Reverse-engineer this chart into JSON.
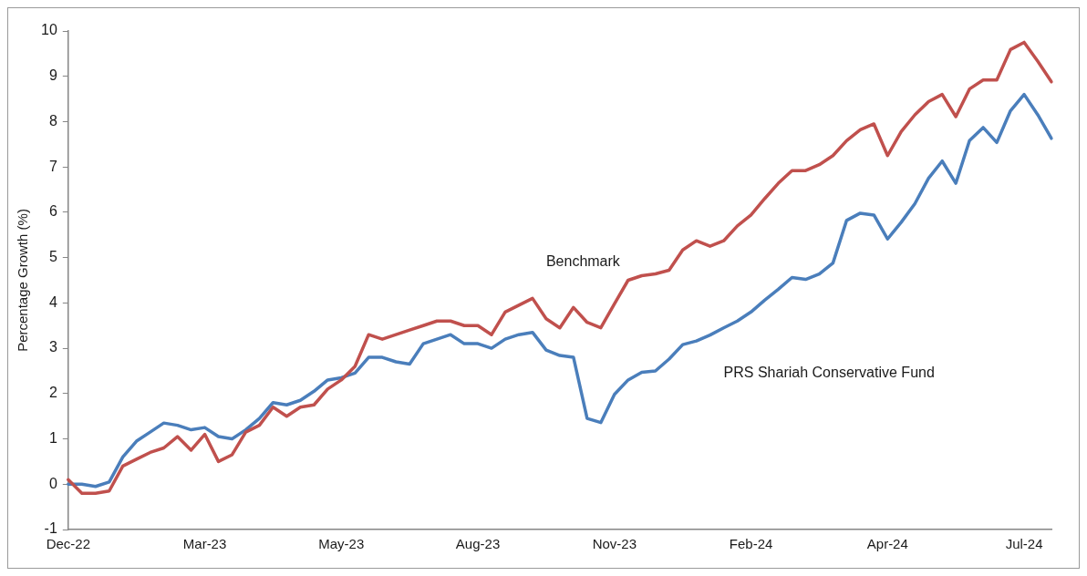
{
  "chart_data": {
    "type": "line",
    "ylabel": "Percentage Growth (%)",
    "categories": [
      "Dec-22",
      null,
      null,
      null,
      null,
      null,
      null,
      null,
      null,
      null,
      "Mar-23",
      null,
      null,
      null,
      null,
      null,
      null,
      null,
      null,
      null,
      "May-23",
      null,
      null,
      null,
      null,
      null,
      null,
      null,
      null,
      null,
      "Aug-23",
      null,
      null,
      null,
      null,
      null,
      null,
      null,
      null,
      null,
      "Nov-23",
      null,
      null,
      null,
      null,
      null,
      null,
      null,
      null,
      null,
      "Feb-24",
      null,
      null,
      null,
      null,
      null,
      null,
      null,
      null,
      null,
      "Apr-24",
      null,
      null,
      null,
      null,
      null,
      null,
      null,
      null,
      null,
      "Jul-24",
      null,
      null
    ],
    "series": [
      {
        "name": "Benchmark",
        "color": "#c0504d",
        "values": [
          0.1,
          -0.2,
          -0.2,
          -0.15,
          0.4,
          0.55,
          0.7,
          0.8,
          1.05,
          0.75,
          1.1,
          0.5,
          0.65,
          1.15,
          1.3,
          1.7,
          1.5,
          1.7,
          1.75,
          2.1,
          2.3,
          2.6,
          3.3,
          3.2,
          3.3,
          3.4,
          3.5,
          3.6,
          3.6,
          3.5,
          3.5,
          3.3,
          3.8,
          3.95,
          4.1,
          3.65,
          3.45,
          3.9,
          3.57,
          3.45,
          3.98,
          4.5,
          4.6,
          4.64,
          4.72,
          5.17,
          5.37,
          5.25,
          5.37,
          5.7,
          5.94,
          6.3,
          6.64,
          6.92,
          6.92,
          7.05,
          7.25,
          7.58,
          7.82,
          7.95,
          7.25,
          7.78,
          8.15,
          8.44,
          8.6,
          8.11,
          8.72,
          8.92,
          8.92,
          9.59,
          9.75,
          9.33,
          8.88
        ]
      },
      {
        "name": "PRS Shariah Conservative Fund",
        "color": "#4a7ebb",
        "values": [
          0,
          0,
          -0.05,
          0.05,
          0.6,
          0.95,
          1.15,
          1.35,
          1.3,
          1.2,
          1.25,
          1.05,
          1.0,
          1.2,
          1.45,
          1.8,
          1.75,
          1.85,
          2.05,
          2.3,
          2.35,
          2.45,
          2.8,
          2.8,
          2.7,
          2.65,
          3.1,
          3.2,
          3.3,
          3.1,
          3.1,
          3.0,
          3.2,
          3.3,
          3.35,
          2.96,
          2.84,
          2.8,
          1.45,
          1.36,
          1.98,
          2.3,
          2.47,
          2.5,
          2.76,
          3.08,
          3.16,
          3.29,
          3.45,
          3.6,
          3.8,
          4.06,
          4.3,
          4.56,
          4.52,
          4.64,
          4.88,
          5.82,
          5.98,
          5.94,
          5.41,
          5.78,
          6.19,
          6.75,
          7.13,
          6.64,
          7.58,
          7.87,
          7.54,
          8.24,
          8.6,
          8.15,
          7.63
        ]
      }
    ],
    "ylim": [
      -1,
      10
    ],
    "yticks": [
      -1,
      0,
      1,
      2,
      3,
      4,
      5,
      6,
      7,
      8,
      9,
      10
    ],
    "grid": false,
    "legend": false,
    "marker": "none",
    "line_style": "solid"
  }
}
